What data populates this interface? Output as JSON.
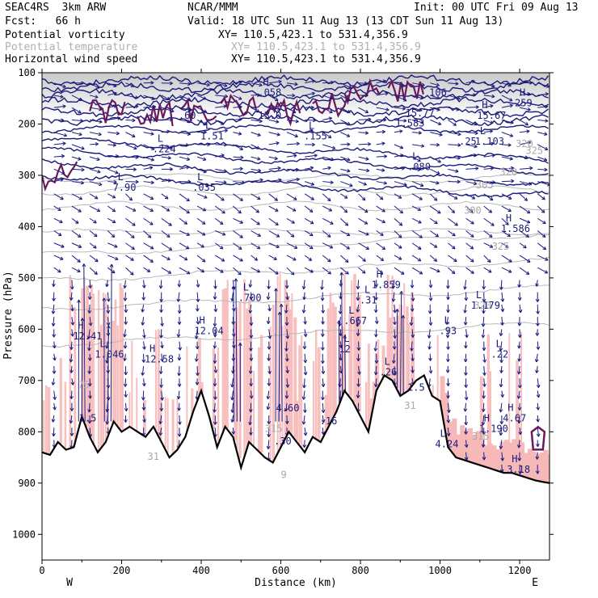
{
  "header": {
    "model": "SEAC4RS  3km ARW",
    "center": "NCAR/MMM",
    "init": "Init: 00 UTC Fri 09 Aug 13",
    "fcst": "Fcst:   66 h",
    "valid": "Valid: 18 UTC Sun 11 Aug 13 (13 CDT Sun 11 Aug 13)"
  },
  "fields": [
    {
      "label": "Potential vorticity",
      "xy": "XY= 110.5,423.1 to 531.4,356.9",
      "color": "#1a1a80"
    },
    {
      "label": "Potential temperature",
      "xy": "XY= 110.5,423.1 to 531.4,356.9",
      "color": "#b0b0b0"
    },
    {
      "label": "Horizontal wind speed",
      "xy": "XY= 110.5,423.1 to 531.4,356.9",
      "color": "#1a1a80"
    }
  ],
  "chart_data": {
    "type": "cross-section",
    "xlabel": "Distance (km)",
    "ylabel": "Pressure (hPa)",
    "xlim": [
      0,
      1275
    ],
    "ylim": [
      1050,
      100
    ],
    "x_ticks": [
      0,
      200,
      400,
      600,
      800,
      1000,
      1200
    ],
    "y_ticks": [
      100,
      200,
      300,
      400,
      500,
      600,
      700,
      800,
      900,
      1000
    ],
    "left_end_label": "W",
    "right_end_label": "E",
    "terrain_surface": {
      "x": [
        0,
        20,
        40,
        60,
        80,
        100,
        120,
        140,
        160,
        180,
        200,
        220,
        240,
        260,
        280,
        300,
        320,
        340,
        360,
        380,
        400,
        420,
        440,
        460,
        480,
        500,
        520,
        540,
        560,
        580,
        600,
        620,
        640,
        660,
        680,
        700,
        720,
        740,
        760,
        780,
        800,
        820,
        840,
        860,
        880,
        900,
        920,
        940,
        960,
        980,
        1000,
        1020,
        1040,
        1060,
        1080,
        1100,
        1120,
        1140,
        1160,
        1180,
        1200,
        1220,
        1240,
        1260,
        1275
      ],
      "p": [
        840,
        845,
        820,
        835,
        830,
        770,
        810,
        840,
        820,
        780,
        800,
        790,
        800,
        810,
        790,
        820,
        850,
        835,
        810,
        760,
        720,
        770,
        830,
        790,
        810,
        870,
        820,
        835,
        850,
        860,
        830,
        800,
        820,
        840,
        810,
        820,
        790,
        760,
        720,
        740,
        770,
        800,
        720,
        690,
        700,
        730,
        720,
        700,
        690,
        730,
        740,
        830,
        850,
        855,
        860,
        865,
        870,
        875,
        880,
        880,
        885,
        890,
        895,
        898,
        900
      ]
    },
    "pv_labels": [
      {
        "x": 190,
        "p": 330,
        "type": "L",
        "value": "7.90"
      },
      {
        "x": 505,
        "p": 545,
        "type": "L",
        "value": ".700"
      },
      {
        "x": 90,
        "p": 620,
        "type": "H",
        "value": "12.41"
      },
      {
        "x": 145,
        "p": 655,
        "type": "L",
        "value": "1.046"
      },
      {
        "x": 270,
        "p": 665,
        "type": "H",
        "value": "12.58"
      },
      {
        "x": 395,
        "p": 610,
        "type": "H",
        "value": "12.04"
      },
      {
        "x": 770,
        "p": 590,
        "type": "L",
        "value": ".667"
      },
      {
        "x": 758,
        "p": 645,
        "type": "L",
        "value": "12"
      },
      {
        "x": 840,
        "p": 520,
        "type": "H",
        "value": "1.859"
      },
      {
        "x": 810,
        "p": 550,
        "type": "L",
        "value": ".31"
      },
      {
        "x": 1010,
        "p": 610,
        "type": "L",
        "value": ".93"
      },
      {
        "x": 1140,
        "p": 655,
        "type": "L",
        "value": ".22"
      },
      {
        "x": 1090,
        "p": 560,
        "type": "L",
        "value": "1.179"
      },
      {
        "x": 860,
        "p": 690,
        "type": "L",
        "value": ".26"
      },
      {
        "x": 930,
        "p": 720,
        "type": "",
        "value": "1.5"
      },
      {
        "x": 105,
        "p": 780,
        "type": "",
        "value": "1.5"
      },
      {
        "x": 600,
        "p": 760,
        "type": "",
        "value": "4.60"
      },
      {
        "x": 595,
        "p": 825,
        "type": "",
        "value": ".30"
      },
      {
        "x": 710,
        "p": 785,
        "type": "",
        "value": ".16"
      },
      {
        "x": 1000,
        "p": 830,
        "type": "L",
        "value": "4.24"
      },
      {
        "x": 1110,
        "p": 800,
        "type": "H",
        "value": "1.190"
      },
      {
        "x": 1170,
        "p": 780,
        "type": "H",
        "value": "4.67"
      },
      {
        "x": 1180,
        "p": 880,
        "type": "H",
        "value": "3.18"
      },
      {
        "x": 290,
        "p": 255,
        "type": "L",
        "value": ".224"
      },
      {
        "x": 390,
        "p": 330,
        "type": "L",
        "value": ".035"
      },
      {
        "x": 670,
        "p": 230,
        "type": "L",
        "value": ".155"
      },
      {
        "x": 930,
        "p": 290,
        "type": "L",
        "value": ".080"
      },
      {
        "x": 1100,
        "p": 240,
        "type": "L",
        "value": "1.103"
      },
      {
        "x": 900,
        "p": 205,
        "type": "",
        "value": "1.583"
      },
      {
        "x": 1165,
        "p": 410,
        "type": "H",
        "value": "1.586"
      },
      {
        "x": 1105,
        "p": 190,
        "type": "H",
        "value": "15.67"
      },
      {
        "x": 925,
        "p": 185,
        "type": "",
        "value": "15.77"
      },
      {
        "x": 355,
        "p": 190,
        "type": "",
        "value": ".60"
      },
      {
        "x": 555,
        "p": 190,
        "type": "",
        "value": "13.0"
      },
      {
        "x": 410,
        "p": 230,
        "type": "L",
        "value": "1.51"
      },
      {
        "x": 555,
        "p": 145,
        "type": "H",
        "value": ".058"
      },
      {
        "x": 1200,
        "p": 165,
        "type": "H",
        "value": "259"
      },
      {
        "x": 1060,
        "p": 240,
        "type": "",
        "value": ".25"
      },
      {
        "x": 985,
        "p": 145,
        "type": "",
        "value": "106"
      }
    ],
    "theta_labels": [
      {
        "x": 1190,
        "p": 245,
        "value": "320"
      },
      {
        "x": 1150,
        "p": 300,
        "value": "320"
      },
      {
        "x": 1215,
        "p": 258,
        "value": "325"
      },
      {
        "x": 1090,
        "p": 325,
        "value": "305"
      },
      {
        "x": 1060,
        "p": 375,
        "value": "300"
      },
      {
        "x": 1130,
        "p": 445,
        "value": "325"
      },
      {
        "x": 1085,
        "p": 560,
        "value": "320"
      },
      {
        "x": 910,
        "p": 755,
        "value": "31"
      },
      {
        "x": 1080,
        "p": 815,
        "value": "315"
      },
      {
        "x": 265,
        "p": 855,
        "value": "31"
      },
      {
        "x": 560,
        "p": 800,
        "value": "315"
      },
      {
        "x": 600,
        "p": 890,
        "value": "9"
      },
      {
        "x": 90,
        "p": 715,
        "value": "75"
      }
    ],
    "wind_arrow_columns_km": [
      30,
      75,
      120,
      165,
      210,
      255,
      300,
      345,
      390,
      435,
      480,
      525,
      570,
      615,
      660,
      705,
      750,
      795,
      840,
      885,
      930,
      975,
      1020,
      1065,
      1110,
      1155,
      1200,
      1245
    ],
    "updraft_columns_km": [
      100,
      165,
      490,
      595,
      755,
      900
    ]
  }
}
